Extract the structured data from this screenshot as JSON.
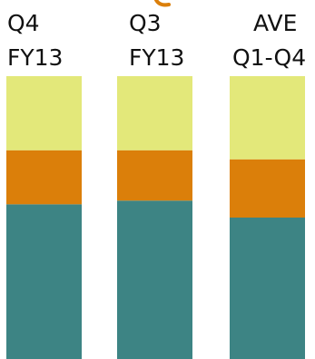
{
  "chart_data": {
    "type": "bar",
    "stacked": true,
    "title": "",
    "xlabel": "",
    "ylabel": "",
    "ylim": [
      0,
      100
    ],
    "legend": "none",
    "grid": false,
    "categories": [
      {
        "line1": "Q4",
        "line2": "FY13"
      },
      {
        "line1": "Q3",
        "line2": "FY13"
      },
      {
        "line1": "AVE",
        "line2": "Q1-Q4"
      }
    ],
    "series": [
      {
        "color": "#3d8484",
        "values": [
          54.7,
          56.0,
          50.0
        ]
      },
      {
        "color": "#db7f0a",
        "values": [
          19.1,
          17.8,
          20.6
        ]
      },
      {
        "color": "#e3e87a",
        "values": [
          26.2,
          26.2,
          29.4
        ]
      }
    ]
  },
  "colors": {
    "top_arc": "#db7f0a"
  }
}
